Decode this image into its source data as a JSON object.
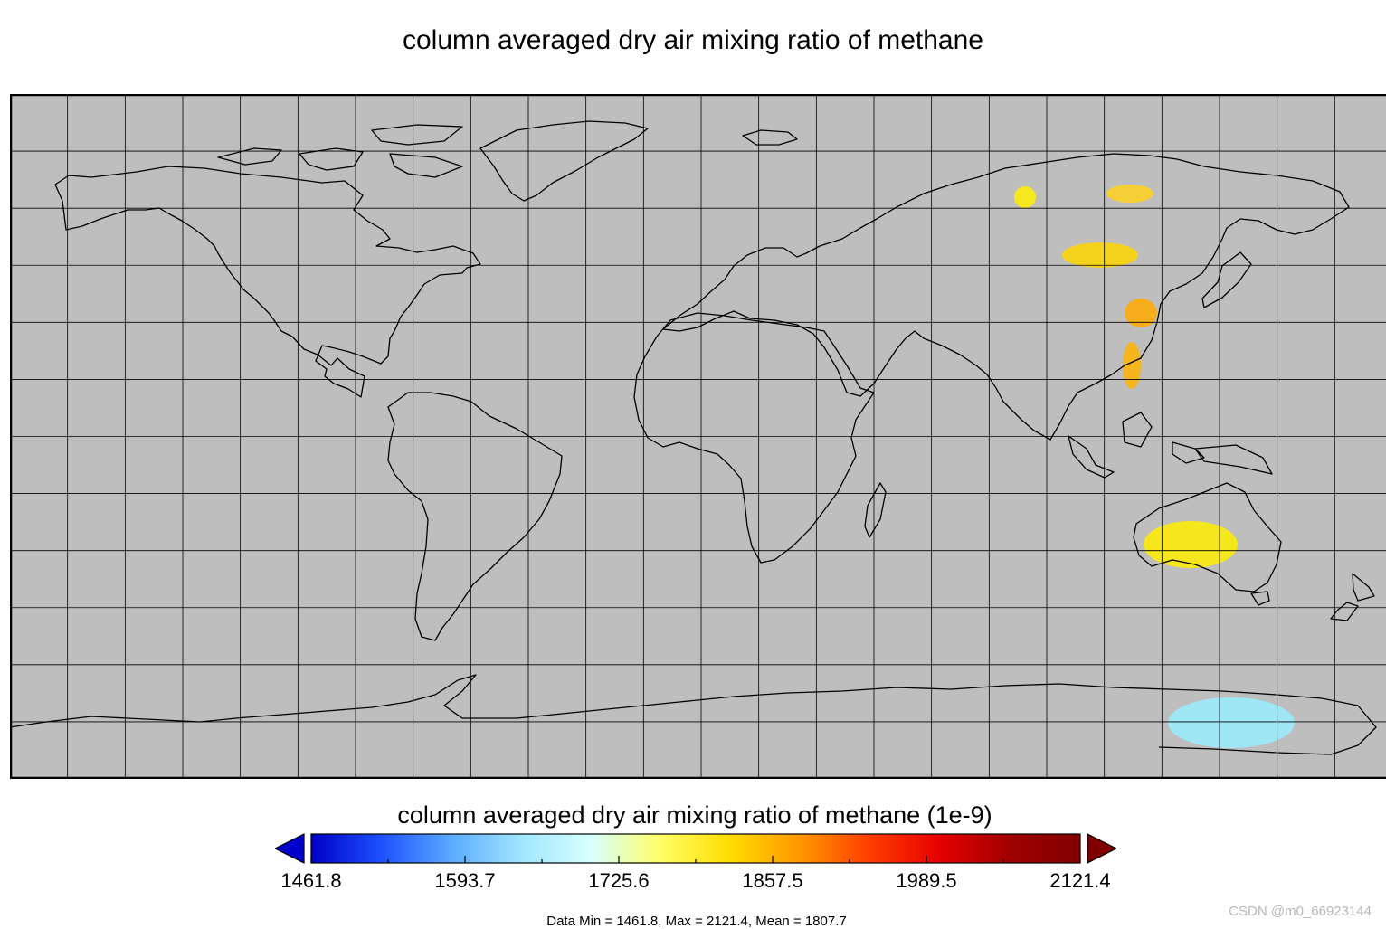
{
  "title": "column averaged dry air mixing ratio of methane",
  "map": {
    "background_color": "#bebebe",
    "coastline_color": "#000000",
    "projection": "cylindrical equidistant",
    "grid": {
      "lon_step_deg": 15,
      "lat_step_deg": 15
    },
    "data_patches": [
      {
        "region": "Western Siberia",
        "value": 1930,
        "color": "#ffd21e"
      },
      {
        "region": "Central Siberia",
        "value": 1880,
        "color": "#fff000"
      },
      {
        "region": "Mongolia / Northern China",
        "value": 1905,
        "color": "#ffd700"
      },
      {
        "region": "Eastern China",
        "value": 1960,
        "color": "#ffaa00"
      },
      {
        "region": "Southeast Asia",
        "value": 1950,
        "color": "#ffb400"
      },
      {
        "region": "Australia",
        "value": 1875,
        "color": "#ffee00"
      },
      {
        "region": "East Antarctica",
        "value": 1740,
        "color": "#9aeeff"
      }
    ]
  },
  "colorbar": {
    "title": "column averaged dry air mixing ratio of methane (1e-9)",
    "min": 1461.8,
    "max": 2121.4,
    "tick_labels": [
      "1461.8",
      "1593.7",
      "1725.6",
      "1857.5",
      "1989.5",
      "2121.4"
    ],
    "under_color": "#0000cd",
    "over_color": "#800000",
    "colors": [
      "#0000c8",
      "#1e50ff",
      "#5aaaff",
      "#a0e6ff",
      "#d7ffff",
      "#ffff64",
      "#ffdc00",
      "#ff9600",
      "#ff3c00",
      "#e60000",
      "#a00000",
      "#800000"
    ]
  },
  "stats_line": "Data Min = 1461.8, Max = 2121.4, Mean = 1807.7",
  "watermark": "CSDN @m0_66923144"
}
